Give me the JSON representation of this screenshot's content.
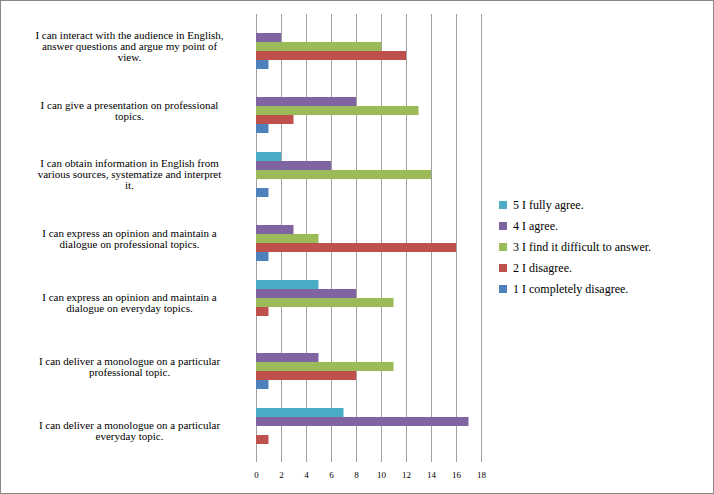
{
  "chart_data": {
    "type": "bar",
    "orientation": "horizontal",
    "categories": [
      "I can interact with the audience in English, answer questions and argue my point of view.",
      "I can give a presentation on professional topics.",
      "I can obtain information in English from various sources, systematize and interpret it.",
      "I can express an opinion and maintain a dialogue on professional topics.",
      "I can express an opinion and maintain a dialogue on everyday topics.",
      "I can deliver a monologue on a particular professional topic.",
      "I can deliver a monologue on a particular everyday topic."
    ],
    "series": [
      {
        "name": "5 I fully agree.",
        "color": "#4bacc6",
        "values": [
          0,
          0,
          2,
          0,
          5,
          0,
          7
        ]
      },
      {
        "name": "4 I agree.",
        "color": "#8064a2",
        "values": [
          2,
          8,
          6,
          3,
          8,
          5,
          17
        ]
      },
      {
        "name": "3 I find it difficult to answer.",
        "color": "#9bbb59",
        "values": [
          10,
          13,
          14,
          5,
          11,
          11,
          0
        ]
      },
      {
        "name": "2 I disagree.",
        "color": "#c0504d",
        "values": [
          12,
          3,
          0,
          16,
          1,
          8,
          1
        ]
      },
      {
        "name": "1 I completely disagree.",
        "color": "#4f81bd",
        "values": [
          1,
          1,
          1,
          1,
          0,
          1,
          0
        ]
      }
    ],
    "xlim": [
      0,
      18
    ],
    "xticks": [
      0,
      2,
      4,
      6,
      8,
      10,
      12,
      14,
      16,
      18
    ],
    "grid": true,
    "legend": "right"
  }
}
